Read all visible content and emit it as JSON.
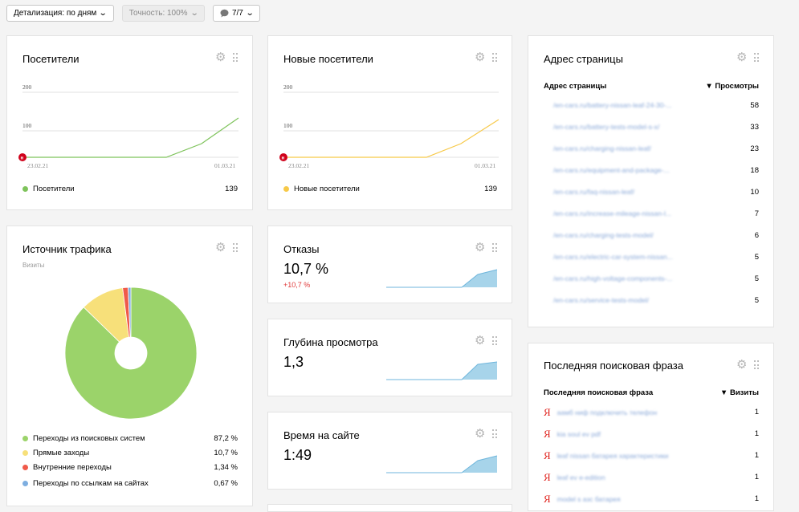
{
  "toolbar": {
    "detail_label": "Детализация: по дням",
    "accuracy_label": "Точность: 100%",
    "segments_label": "7/7"
  },
  "visitors": {
    "title": "Посетители",
    "y_ticks": [
      "200",
      "100"
    ],
    "x_start": "23.02.21",
    "x_end": "01.03.21",
    "legend_label": "Посетители",
    "legend_value": "139",
    "color": "#7ec35b"
  },
  "new_visitors": {
    "title": "Новые посетители",
    "y_ticks": [
      "200",
      "100"
    ],
    "x_start": "23.02.21",
    "x_end": "01.03.21",
    "legend_label": "Новые посетители",
    "legend_value": "139",
    "color": "#f7c948"
  },
  "traffic": {
    "title": "Источник трафика",
    "subtitle": "Визиты",
    "items": [
      {
        "label": "Переходы из поисковых систем",
        "value": "87,2 %",
        "color": "#9bd36a"
      },
      {
        "label": "Прямые заходы",
        "value": "10,7 %",
        "color": "#f7e07a"
      },
      {
        "label": "Внутренние переходы",
        "value": "1,34 %",
        "color": "#f05a4a"
      },
      {
        "label": "Переходы по ссылкам на сайтах",
        "value": "0,67 %",
        "color": "#7eaee0"
      }
    ]
  },
  "bounce": {
    "title": "Отказы",
    "value": "10,7 %",
    "delta": "+10,7 %"
  },
  "depth": {
    "title": "Глубина просмотра",
    "value": "1,3"
  },
  "time": {
    "title": "Время на сайте",
    "value": "1:49"
  },
  "pages": {
    "title": "Адрес страницы",
    "col1": "Адрес страницы",
    "col2": "▼ Просмотры",
    "rows": [
      {
        "url": "/en-cars.ru/battery-nissan-leaf-24-30-...",
        "value": "58"
      },
      {
        "url": "/en-cars.ru/battery-tests-model-s-x/",
        "value": "33"
      },
      {
        "url": "/en-cars.ru/charging-nissan-leaf/",
        "value": "23"
      },
      {
        "url": "/en-cars.ru/equipment-and-package-...",
        "value": "18"
      },
      {
        "url": "/en-cars.ru/faq-nissan-leaf/",
        "value": "10"
      },
      {
        "url": "/en-cars.ru/increase-mileage-nissan-l...",
        "value": "7"
      },
      {
        "url": "/en-cars.ru/charging-tests-model/",
        "value": "6"
      },
      {
        "url": "/en-cars.ru/electric-car-system-nissan...",
        "value": "5"
      },
      {
        "url": "/en-cars.ru/high-voltage-components-...",
        "value": "5"
      },
      {
        "url": "/en-cars.ru/service-tests-model/",
        "value": "5"
      }
    ]
  },
  "search": {
    "title": "Последняя поисковая фраза",
    "col1": "Последняя поисковая фраза",
    "col2": "▼ Визиты",
    "rows": [
      {
        "phrase": "аамб ниф подключить телефон",
        "value": "1"
      },
      {
        "phrase": "kia soul ev pdf",
        "value": "1"
      },
      {
        "phrase": "leaf nissan батарея характеристики",
        "value": "1"
      },
      {
        "phrase": "leaf ev e-edition",
        "value": "1"
      },
      {
        "phrase": "model s азс батарея",
        "value": "1"
      }
    ]
  },
  "icons": {
    "gear": "gear-icon",
    "drag": "drag-handle-icon",
    "comment": "comment-icon",
    "yandex": "yandex-icon"
  }
}
